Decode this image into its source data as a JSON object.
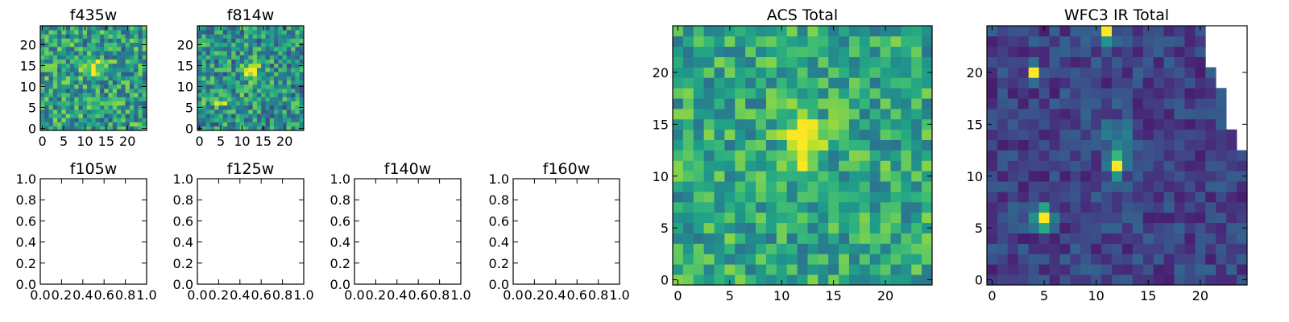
{
  "chart_data": [
    {
      "id": "f435w",
      "type": "heatmap",
      "title": "f435w",
      "grid_size": 25,
      "xticks": [
        "0",
        "5",
        "10",
        "15",
        "20"
      ],
      "yticks": [
        "0",
        "5",
        "10",
        "15",
        "20"
      ],
      "xlim": [
        -0.5,
        24.5
      ],
      "ylim": [
        -0.5,
        24.5
      ],
      "colormap": "viridis",
      "background_level": 0.55,
      "noise": 0.28,
      "hotspots": [
        {
          "x": 12,
          "y": 14,
          "width": 2.2,
          "height": 2.2,
          "amplitude": 0.5
        }
      ],
      "masked_region": null
    },
    {
      "id": "f814w",
      "type": "heatmap",
      "title": "f814w",
      "grid_size": 25,
      "xticks": [
        "0",
        "5",
        "10",
        "15",
        "20"
      ],
      "yticks": [
        "0",
        "5",
        "10",
        "15",
        "20"
      ],
      "xlim": [
        -0.5,
        24.5
      ],
      "ylim": [
        -0.5,
        24.5
      ],
      "colormap": "viridis",
      "background_level": 0.5,
      "noise": 0.28,
      "hotspots": [
        {
          "x": 12,
          "y": 14,
          "width": 2.0,
          "height": 2.0,
          "amplitude": 0.55
        },
        {
          "x": 5,
          "y": 7,
          "width": 4.0,
          "height": 2.0,
          "amplitude": 0.25
        }
      ],
      "masked_region": null
    },
    {
      "id": "f105w",
      "type": "empty",
      "title": "f105w",
      "xticks": [
        "0.0",
        "0.2",
        "0.4",
        "0.6",
        "0.8",
        "1.0"
      ],
      "yticks": [
        "0.0",
        "0.2",
        "0.4",
        "0.6",
        "0.8",
        "1.0"
      ],
      "xlim": [
        0,
        1
      ],
      "ylim": [
        0,
        1
      ]
    },
    {
      "id": "f125w",
      "type": "empty",
      "title": "f125w",
      "xticks": [
        "0.0",
        "0.2",
        "0.4",
        "0.6",
        "0.8",
        "1.0"
      ],
      "yticks": [
        "0.0",
        "0.2",
        "0.4",
        "0.6",
        "0.8",
        "1.0"
      ],
      "xlim": [
        0,
        1
      ],
      "ylim": [
        0,
        1
      ]
    },
    {
      "id": "f140w",
      "type": "empty",
      "title": "f140w",
      "xticks": [
        "0.0",
        "0.2",
        "0.4",
        "0.6",
        "0.8",
        "1.0"
      ],
      "yticks": [
        "0.0",
        "0.2",
        "0.4",
        "0.6",
        "0.8",
        "1.0"
      ],
      "xlim": [
        0,
        1
      ],
      "ylim": [
        0,
        1
      ]
    },
    {
      "id": "f160w",
      "type": "empty",
      "title": "f160w",
      "xticks": [
        "0.0",
        "0.2",
        "0.4",
        "0.6",
        "0.8",
        "1.0"
      ],
      "yticks": [
        "0.0",
        "0.2",
        "0.4",
        "0.6",
        "0.8",
        "1.0"
      ],
      "xlim": [
        0,
        1
      ],
      "ylim": [
        0,
        1
      ]
    },
    {
      "id": "acs-total",
      "type": "heatmap",
      "title": "ACS Total",
      "grid_size": 25,
      "xticks": [
        "0",
        "5",
        "10",
        "15",
        "20"
      ],
      "yticks": [
        "0",
        "5",
        "10",
        "15",
        "20"
      ],
      "xlim": [
        -0.5,
        24.5
      ],
      "ylim": [
        -0.5,
        24.5
      ],
      "colormap": "viridis",
      "background_level": 0.6,
      "noise": 0.22,
      "hotspots": [
        {
          "x": 12,
          "y": 14,
          "width": 1.8,
          "height": 1.8,
          "amplitude": 0.6
        },
        {
          "x": 12,
          "y": 11,
          "width": 1.0,
          "height": 2.0,
          "amplitude": 0.2
        }
      ],
      "masked_region": null
    },
    {
      "id": "wfc3-ir-total",
      "type": "heatmap",
      "title": "WFC3 IR Total",
      "grid_size": 25,
      "xticks": [
        "0",
        "5",
        "10",
        "15",
        "20"
      ],
      "yticks": [
        "0",
        "5",
        "10",
        "15",
        "20"
      ],
      "xlim": [
        -0.5,
        24.5
      ],
      "ylim": [
        -0.5,
        24.5
      ],
      "colormap": "viridis",
      "background_level": 0.2,
      "noise": 0.12,
      "hotspots": [
        {
          "x": 11,
          "y": 24,
          "width": 0.7,
          "height": 1.0,
          "amplitude": 0.9
        },
        {
          "x": 4,
          "y": 20,
          "width": 0.6,
          "height": 0.8,
          "amplitude": 0.85
        },
        {
          "x": 12,
          "y": 11,
          "width": 0.8,
          "height": 1.0,
          "amplitude": 0.9
        },
        {
          "x": 5,
          "y": 6,
          "width": 0.8,
          "height": 1.0,
          "amplitude": 0.95
        },
        {
          "x": 12,
          "y": 14,
          "width": 1.4,
          "height": 1.6,
          "amplitude": 0.25
        }
      ],
      "masked_region": {
        "description": "white NaN region along the top-right edge",
        "columns_from": [
          21,
          22,
          23,
          24
        ],
        "rows_from": [
          21,
          19,
          15,
          13
        ]
      }
    }
  ]
}
